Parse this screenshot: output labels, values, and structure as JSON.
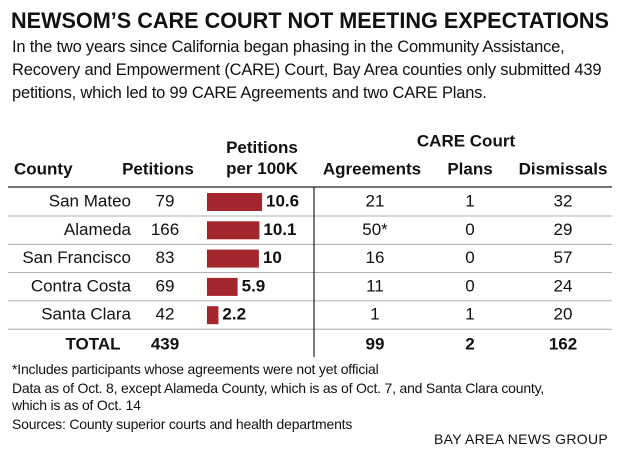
{
  "header": {
    "title": "NEWSOM’S CARE COURT NOT MEETING EXPECTATIONS",
    "subtitle": "In the two years since California began phasing in the Community Assistance, Recovery and Empowerment (CARE) Court, Bay Area counties only submitted 439 petitions, which led to 99 CARE Agreements and two CARE Plans."
  },
  "table": {
    "group_header": "CARE Court",
    "columns": [
      "County",
      "Petitions",
      "Petitions per 100K",
      "Agreements",
      "Plans",
      "Dismissals"
    ],
    "rows": [
      [
        "San Mateo",
        79,
        10.6,
        21,
        1,
        32
      ],
      [
        "Alameda",
        166,
        10.1,
        {
          "value": 50,
          "label": "50*"
        },
        0,
        29
      ],
      [
        "San Francisco",
        83,
        10,
        16,
        0,
        57
      ],
      [
        "Contra Costa",
        69,
        5.9,
        11,
        0,
        24
      ],
      [
        "Santa Clara",
        42,
        2.2,
        1,
        1,
        20
      ]
    ],
    "total": {
      "label": "TOTAL",
      "petitions": 439,
      "agreements": 99,
      "plans": 2,
      "dismissals": 162
    },
    "bar_color": "#a3262d"
  },
  "notes": [
    "*Includes participants whose agreements were not yet official",
    "Data as of Oct. 8, except Alameda County, which is as of Oct. 7, and Santa Clara county, which is as of Oct. 14",
    "Sources: County superior courts and health departments"
  ],
  "credit": "BAY AREA NEWS GROUP"
}
